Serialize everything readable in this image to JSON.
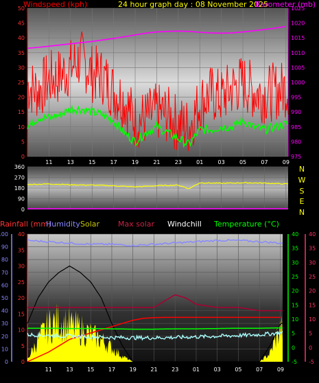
{
  "header": {
    "wind_label": "Windspeed (kph)",
    "title": "24 hour graph day : 08 November 2025",
    "baro_label": "Barometer (mb)"
  },
  "legend2": {
    "rain": "Rainfall (mm)",
    "humidity": "Humidity",
    "solar": "Solar",
    "max_solar": "Max solar",
    "windchill": "Windchill",
    "temperature": "Temperature (°C)"
  },
  "colors": {
    "wind": "#ff0000",
    "gust_line": "#00ff00",
    "baro": "#ff00ff",
    "wind_dir": "#ffff00",
    "rain_axis": "#ff3333",
    "humidity": "#8888ff",
    "solar_fill": "#ffff00",
    "max_solar": "#aa0033",
    "windchill": "#000000",
    "temperature": "#00ff00",
    "dew": "#aaffff",
    "rain": "#ff0000"
  },
  "chart_data": [
    {
      "type": "line",
      "x_ticks": [
        "11",
        "13",
        "15",
        "17",
        "19",
        "21",
        "23",
        "01",
        "03",
        "05",
        "07",
        "09"
      ],
      "y_left": {
        "label": "Windspeed (kph)",
        "range": [
          0,
          50
        ],
        "ticks": [
          0,
          5,
          10,
          15,
          20,
          25,
          30,
          35,
          40,
          45,
          50
        ]
      },
      "y_right": {
        "label": "Barometer (mb)",
        "range": [
          975,
          1025
        ],
        "ticks": [
          975,
          980,
          985,
          990,
          995,
          1000,
          1005,
          1010,
          1015,
          1020,
          1025
        ]
      },
      "series": [
        {
          "name": "Windspeed (kph)",
          "axis": "left",
          "x": [
            9,
            10,
            11,
            12,
            13,
            14,
            15,
            16,
            17,
            18,
            19,
            20,
            21,
            22,
            23,
            24,
            25,
            26,
            27,
            28,
            29,
            30,
            31,
            32,
            33
          ],
          "y": [
            24,
            22,
            26,
            27,
            30,
            33,
            28,
            27,
            22,
            19,
            12,
            13,
            15,
            14,
            11,
            10,
            18,
            21,
            20,
            23,
            25,
            22,
            21,
            22,
            23
          ]
        },
        {
          "axis": "left",
          "x": [
            9,
            10,
            11,
            12,
            13,
            14,
            15,
            16,
            17,
            18,
            19,
            20,
            21,
            22,
            23,
            24,
            25,
            26,
            27,
            28,
            29,
            30,
            31,
            32,
            33
          ],
          "y": [
            10,
            13,
            13,
            14,
            16,
            16,
            15,
            14,
            12,
            8,
            5,
            8,
            10,
            8,
            6,
            4,
            9,
            9,
            10,
            10,
            12,
            10,
            9,
            10,
            11
          ]
        },
        {
          "name": "Barometer (mb)",
          "axis": "right",
          "x": [
            9,
            10,
            11,
            12,
            13,
            14,
            15,
            16,
            17,
            18,
            19,
            20,
            21,
            22,
            23,
            24,
            25,
            26,
            27,
            28,
            29,
            30,
            31,
            32,
            33
          ],
          "y": [
            1011.5,
            1011.8,
            1012.2,
            1012.6,
            1013,
            1013.4,
            1013.8,
            1014.3,
            1014.8,
            1015.4,
            1016,
            1016.6,
            1017,
            1017.2,
            1017.3,
            1017.2,
            1016.9,
            1016.7,
            1016.6,
            1016.7,
            1017,
            1017.4,
            1017.8,
            1018.3,
            1018.9
          ]
        }
      ]
    },
    {
      "type": "line",
      "x_ticks": [
        "11",
        "13",
        "15",
        "17",
        "19",
        "21",
        "23",
        "01",
        "03",
        "05",
        "07",
        "09"
      ],
      "y_left": {
        "range": [
          0,
          360
        ],
        "ticks": [
          0,
          90,
          180,
          270,
          360
        ]
      },
      "right_labels": [
        "N",
        "W",
        "S",
        "E",
        "N"
      ],
      "series": [
        {
          "axis": "left",
          "x": [
            9,
            11,
            13,
            15,
            17,
            19,
            21,
            23,
            24,
            25,
            27,
            29,
            31,
            33
          ],
          "y": [
            210,
            215,
            208,
            205,
            200,
            190,
            200,
            205,
            175,
            225,
            220,
            225,
            222,
            215
          ]
        }
      ]
    },
    {
      "type": "line",
      "x_ticks": [
        "11",
        "13",
        "15",
        "17",
        "19",
        "21",
        "23",
        "01",
        "03",
        "05",
        "07",
        "09"
      ],
      "y_axis_1": {
        "label": "Rainfall (mm)",
        "range": [
          0,
          40
        ],
        "ticks": [
          0,
          5,
          10,
          15,
          20,
          25,
          30,
          35,
          40
        ]
      },
      "y_axis_2": {
        "label": "Humidity",
        "range": [
          0,
          100
        ],
        "ticks": [
          0,
          10,
          20,
          30,
          40,
          50,
          60,
          70,
          80,
          90,
          100
        ]
      },
      "y_axis_3": {
        "label": "Temperature (°C)",
        "range": [
          -5,
          40
        ],
        "ticks": [
          -5,
          0,
          5,
          10,
          15,
          20,
          25,
          30,
          35,
          40
        ]
      },
      "y_axis_4": {
        "range": [
          -5,
          40
        ],
        "ticks": [
          -5,
          0,
          5,
          10,
          15,
          20,
          25,
          30,
          35,
          40
        ]
      },
      "series": [
        {
          "name": "Humidity",
          "x": [
            9,
            11,
            13,
            15,
            17,
            19,
            21,
            23,
            25,
            27,
            29,
            31,
            33
          ],
          "y": [
            95,
            94,
            93,
            92,
            92,
            91,
            92,
            93,
            94,
            95,
            95,
            94,
            93
          ]
        },
        {
          "name": "Solar",
          "x": [
            9,
            10,
            11,
            12,
            13,
            14,
            15,
            16,
            17,
            18,
            19,
            20,
            21,
            31,
            32,
            32.5,
            33
          ],
          "y": [
            1,
            8,
            13,
            15,
            13,
            12,
            10,
            8,
            5,
            2,
            0,
            0,
            0,
            0,
            3,
            8,
            12
          ]
        },
        {
          "name": "Max solar",
          "x": [
            9,
            11,
            13,
            15,
            17,
            19,
            21,
            22,
            23,
            24,
            25,
            27,
            29,
            31,
            33
          ],
          "y": [
            17,
            17,
            17,
            17,
            17,
            17,
            17,
            19,
            21,
            20,
            18,
            17,
            17,
            16,
            16
          ]
        },
        {
          "name": "Windchill",
          "x": [
            9,
            10,
            11,
            12,
            13,
            14,
            15,
            16,
            17,
            18,
            19,
            20,
            21,
            31,
            32,
            33
          ],
          "y": [
            12,
            20,
            25,
            28,
            30,
            28,
            25,
            20,
            12,
            5,
            0,
            0,
            0,
            0,
            5,
            12
          ]
        },
        {
          "name": "Temperature (°C)",
          "x": [
            9,
            11,
            13,
            15,
            17,
            19,
            21,
            23,
            25,
            27,
            29,
            31,
            33
          ],
          "y": [
            10.5,
            10.5,
            10.4,
            10.4,
            10.3,
            10.2,
            10.2,
            10.3,
            10.3,
            10.4,
            10.5,
            10.5,
            10.6
          ]
        },
        {
          "x": [
            9,
            11,
            13,
            15,
            17,
            19,
            21,
            23,
            25,
            27,
            29,
            31,
            33
          ],
          "y": [
            8.5,
            8.2,
            8,
            7.8,
            7.6,
            7.5,
            7.5,
            7.6,
            7.8,
            8,
            8.2,
            8.5,
            9
          ]
        },
        {
          "x": [
            9,
            10,
            11,
            12,
            13,
            14,
            15,
            16,
            17,
            18,
            19,
            20,
            21,
            22,
            23,
            33
          ],
          "y": [
            0,
            1.5,
            3,
            5,
            7,
            8,
            9,
            10,
            11,
            12,
            13,
            13.6,
            13.8,
            13.9,
            13.9,
            13.9
          ]
        }
      ]
    }
  ]
}
